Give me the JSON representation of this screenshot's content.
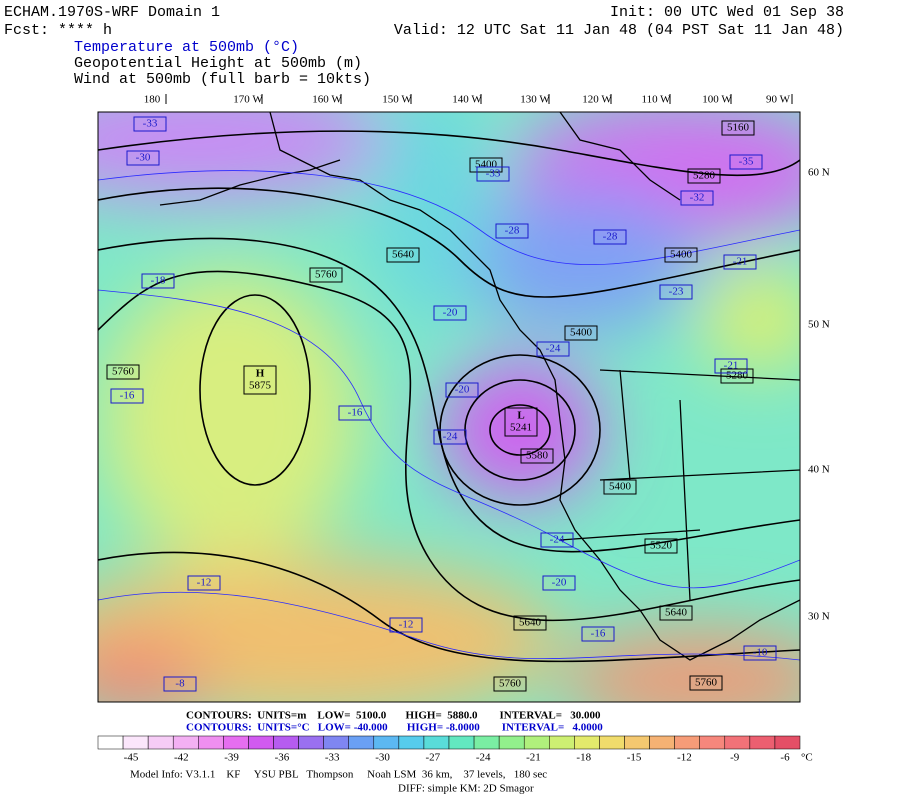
{
  "header": {
    "title": "ECHAM.1970S-WRF Domain 1",
    "init": "Init: 00 UTC Wed 01 Sep 38",
    "fcst": "Fcst: **** h",
    "valid": "Valid: 12 UTC Sat 11 Jan 48 (04 PST Sat 11 Jan 48)",
    "fields": [
      {
        "text": "Temperature at 500mb (°C)",
        "color": "#0000cc"
      },
      {
        "text": "Geopotential Height at 500mb (m)",
        "color": "#000000"
      },
      {
        "text": "Wind at 500mb (full barb = 10kts)",
        "color": "#000000"
      }
    ]
  },
  "map": {
    "longitudes": [
      "180",
      "170 W",
      "160 W",
      "150 W",
      "140 W",
      "130 W",
      "120 W",
      "110 W",
      "100 W",
      "90 W"
    ],
    "latitudes": [
      "60 N",
      "50 N",
      "40 N",
      "30 N"
    ],
    "high": {
      "symbol": "H",
      "value": "5875"
    },
    "low": {
      "symbol": "L",
      "value": "5241"
    },
    "height_labels": [
      "5400",
      "5280",
      "5640",
      "5760",
      "5400",
      "5400",
      "5760",
      "5280",
      "5400",
      "5520",
      "5640",
      "5640",
      "5760",
      "5760",
      "5160",
      "5580"
    ],
    "temp_labels": [
      "-33",
      "-30",
      "-35",
      "-32",
      "-28",
      "-28",
      "-21",
      "-23",
      "-20",
      "-24",
      "-20",
      "-24",
      "-16",
      "-18",
      "-16",
      "-21",
      "-24",
      "-20",
      "-12",
      "-12",
      "-16",
      "-10",
      "-8",
      "-33"
    ],
    "height_color": "#000000",
    "temp_color": "#1a1acc"
  },
  "contours": [
    {
      "text": "CONTOURS:  UNITS=m    LOW=  5100.0       HIGH=  5880.0        INTERVAL=   30.000",
      "color": "#000000"
    },
    {
      "text": "CONTOURS:  UNITS=°C   LOW= -40.000       HIGH= -8.0000        INTERVAL=   4.0000",
      "color": "#0000cc"
    }
  ],
  "colorbar": {
    "ticks": [
      -45,
      -42,
      -39,
      -36,
      -33,
      -30,
      -27,
      -24,
      -21,
      -18,
      -15,
      -12,
      -9,
      -6
    ],
    "unit": "°C",
    "colors": [
      "#ffffff",
      "#fbe6fb",
      "#f6ccf6",
      "#f3b0f3",
      "#ef8ff0",
      "#e66ef0",
      "#d15af0",
      "#b65cf0",
      "#9a70f0",
      "#7f86f2",
      "#6aa0f4",
      "#5cb8f2",
      "#56ccec",
      "#59dcd9",
      "#63e8c0",
      "#7aeea3",
      "#92f08c",
      "#b0f07c",
      "#cdef72",
      "#e3ea6c",
      "#f0dc6c",
      "#f4c870",
      "#f5b274",
      "#f69c78",
      "#f6877c",
      "#f27278",
      "#ec5f70",
      "#e44f66"
    ]
  },
  "footer": {
    "model": "Model Info: V3.1.1    KF     YSU PBL   Thompson     Noah LSM  36 km,    37 levels,   180 sec",
    "diff": "DIFF: simple KM: 2D Smagor"
  }
}
